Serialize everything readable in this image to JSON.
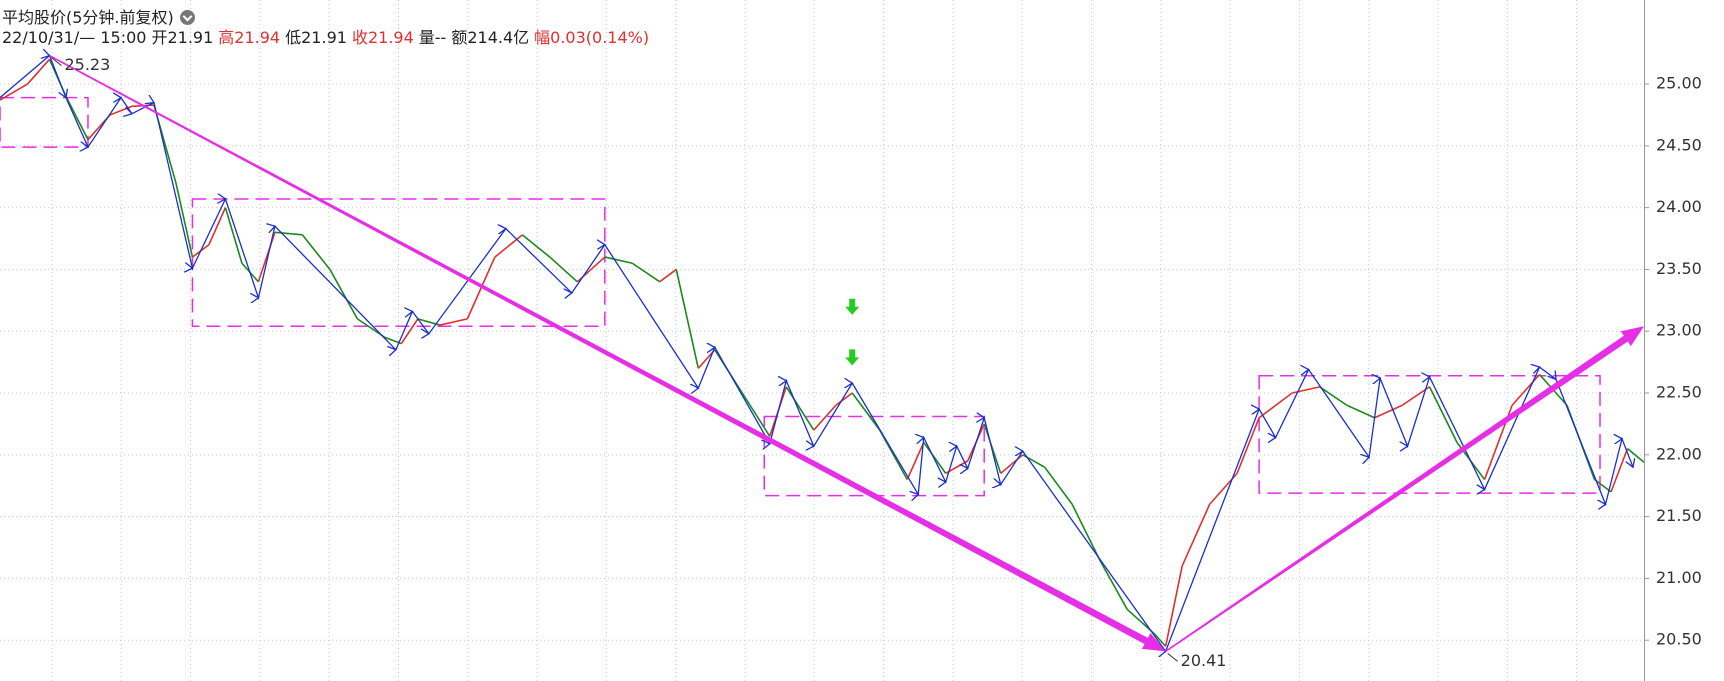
{
  "chart_data": {
    "type": "line",
    "title": "平均股价(5分钟.前复权)",
    "date": "22/10/31/— 15:00",
    "info": [
      {
        "label": "开",
        "value": "21.91",
        "color": "#222222"
      },
      {
        "label": "高",
        "value": "21.94",
        "color": "#e03030"
      },
      {
        "label": "低",
        "value": "21.91",
        "color": "#222222"
      },
      {
        "label": "收",
        "value": "21.94",
        "color": "#e03030"
      },
      {
        "label": "量--",
        "value": "",
        "color": "#222222"
      },
      {
        "label": "额214.4亿",
        "value": "",
        "color": "#222222"
      },
      {
        "label": "幅",
        "value": "0.03(0.14%)",
        "color": "#e03030"
      }
    ],
    "xlim": [
      0,
      299
    ],
    "ylim": [
      20.17,
      25.68
    ],
    "yticks": [
      {
        "value": 20.5,
        "label": "20.50"
      },
      {
        "value": 21,
        "label": "21.00"
      },
      {
        "value": 21.5,
        "label": "21.50"
      },
      {
        "value": 22,
        "label": "22.00"
      },
      {
        "value": 22.5,
        "label": "22.50"
      },
      {
        "value": 23,
        "label": "23.00"
      },
      {
        "value": 23.5,
        "label": "23.50"
      },
      {
        "value": 24,
        "label": "24.00"
      },
      {
        "value": 24.5,
        "label": "24.50"
      },
      {
        "value": 25,
        "label": "25.00"
      }
    ],
    "grid": true,
    "up_color": "#e03030",
    "down_color": "#1a8a1a",
    "x": [
      0,
      5,
      9,
      12,
      16,
      20,
      24,
      28,
      32,
      35,
      38,
      41,
      44,
      47,
      50,
      55,
      60,
      65,
      70,
      73,
      76,
      80,
      85,
      90,
      95,
      100,
      105,
      110,
      115,
      120,
      123,
      127,
      130,
      135,
      140,
      143,
      148,
      152,
      155,
      160,
      165,
      168,
      172,
      176,
      179,
      182,
      186,
      190,
      195,
      200,
      205,
      210,
      212,
      215,
      220,
      225,
      229,
      235,
      240,
      245,
      250,
      255,
      260,
      265,
      270,
      275,
      280,
      285,
      290,
      293,
      296,
      299
    ],
    "values": [
      24.87,
      25.0,
      25.2,
      24.9,
      24.55,
      24.75,
      24.82,
      24.83,
      24.2,
      23.6,
      23.7,
      24.0,
      23.55,
      23.4,
      23.8,
      23.78,
      23.5,
      23.1,
      22.95,
      22.9,
      23.1,
      23.05,
      23.1,
      23.6,
      23.78,
      23.6,
      23.4,
      23.6,
      23.55,
      23.4,
      23.5,
      22.7,
      22.85,
      22.5,
      22.15,
      22.55,
      22.2,
      22.4,
      22.5,
      22.2,
      21.8,
      22.1,
      21.85,
      21.95,
      22.25,
      21.85,
      22.0,
      21.9,
      21.6,
      21.15,
      20.75,
      20.55,
      20.45,
      21.1,
      21.6,
      21.85,
      22.3,
      22.5,
      22.55,
      22.4,
      22.3,
      22.4,
      22.55,
      22.1,
      21.8,
      22.4,
      22.65,
      22.4,
      21.8,
      21.7,
      22.05,
      21.94
    ],
    "zigzag": {
      "color": "#1a2fd0",
      "x": [
        0,
        9,
        12,
        16,
        22,
        24,
        28,
        35,
        41,
        47,
        50,
        72,
        75,
        78,
        92,
        104,
        110,
        127,
        130,
        140,
        143,
        148,
        155,
        167,
        168,
        172,
        174,
        176,
        179,
        182,
        186,
        212,
        229,
        232,
        238,
        249,
        251,
        256,
        260,
        270,
        280,
        283,
        292,
        295,
        297
      ],
      "values": [
        24.89,
        25.23,
        24.89,
        24.49,
        24.89,
        24.76,
        24.85,
        23.51,
        24.07,
        23.27,
        23.85,
        22.85,
        23.16,
        22.98,
        23.83,
        23.31,
        23.7,
        22.54,
        22.87,
        22.09,
        22.6,
        22.07,
        22.58,
        21.68,
        22.14,
        21.78,
        22.07,
        21.89,
        22.3,
        21.76,
        22.03,
        20.41,
        22.37,
        22.14,
        22.69,
        21.98,
        22.62,
        22.07,
        22.63,
        21.72,
        22.71,
        22.61,
        21.6,
        22.13,
        21.9
      ]
    },
    "trendlines": [
      {
        "x": [
          9,
          212
        ],
        "values": [
          25.23,
          20.41
        ],
        "color": "#e62ee6"
      },
      {
        "x": [
          212,
          299
        ],
        "values": [
          20.41,
          23.04
        ],
        "color": "#e62ee6"
      }
    ],
    "boxes": [
      {
        "xlim": [
          0,
          16
        ],
        "ylim": [
          24.49,
          24.89
        ],
        "color": "#e62ee6"
      },
      {
        "xlim": [
          35,
          110
        ],
        "ylim": [
          23.04,
          24.07
        ],
        "color": "#e62ee6"
      },
      {
        "xlim": [
          139,
          179
        ],
        "ylim": [
          21.67,
          22.31
        ],
        "color": "#e62ee6"
      },
      {
        "xlim": [
          229,
          291
        ],
        "ylim": [
          21.69,
          22.64
        ],
        "color": "#e62ee6"
      }
    ],
    "signals": {
      "x": [
        155,
        155
      ],
      "values": [
        23.19,
        22.78
      ],
      "color": "#22cc22"
    },
    "annotations": [
      "chart_data.zigzag.values.1",
      "chart_data.zigzag.values.31"
    ]
  }
}
